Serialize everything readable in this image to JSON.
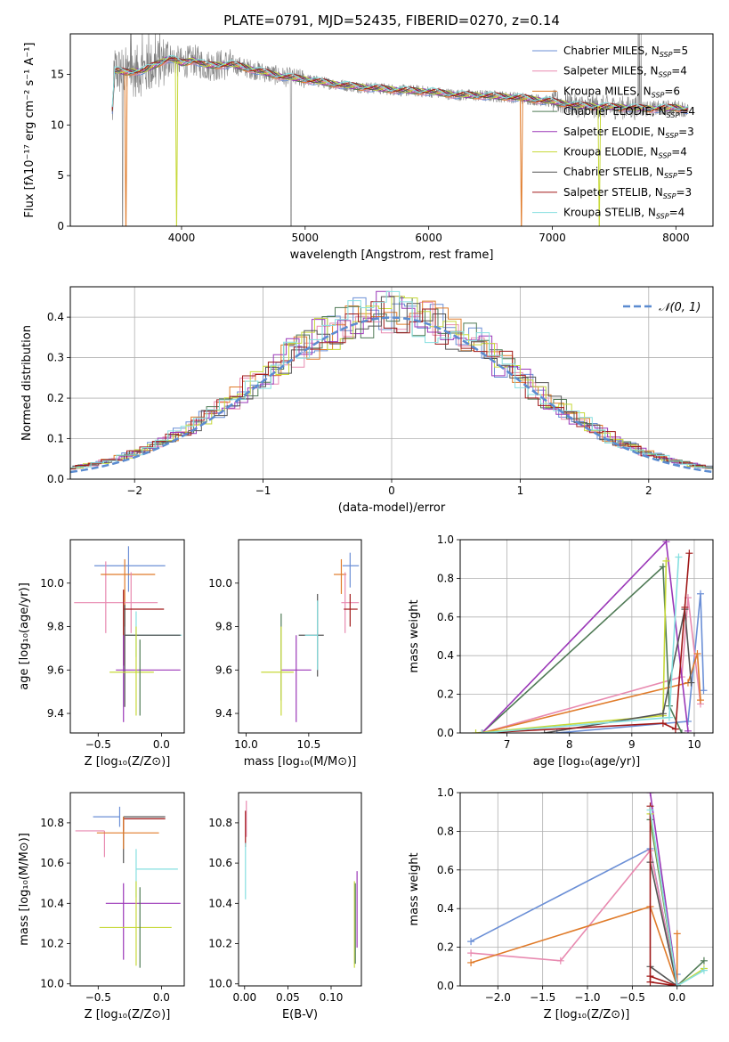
{
  "figure": {
    "title": "PLATE=0791, MJD=52435, FIBERID=0270, z=0.14"
  },
  "models": [
    {
      "name": "Chabrier MILES",
      "nssp": "5",
      "color": "#6b8fd6"
    },
    {
      "name": "Salpeter MILES",
      "nssp": "4",
      "color": "#e88ab0"
    },
    {
      "name": "Kroupa MILES",
      "nssp": "6",
      "color": "#e07b2a"
    },
    {
      "name": "Chabrier ELODIE",
      "nssp": "4",
      "color": "#4f7a55"
    },
    {
      "name": "Salpeter ELODIE",
      "nssp": "3",
      "color": "#9b38b8"
    },
    {
      "name": "Kroupa ELODIE",
      "nssp": "4",
      "color": "#c7d93a"
    },
    {
      "name": "Chabrier STELIB",
      "nssp": "5",
      "color": "#555555"
    },
    {
      "name": "Salpeter STELIB",
      "nssp": "3",
      "color": "#a01818"
    },
    {
      "name": "Kroupa STELIB",
      "nssp": "4",
      "color": "#86dfe0"
    }
  ],
  "chart_data": [
    {
      "id": "spectrum",
      "type": "line",
      "xlabel": "wavelength [Angstrom, rest frame]",
      "ylabel": "Flux [fλ10⁻¹⁷ erg cm⁻² s⁻¹ A⁻¹]",
      "xlim": [
        3100,
        8300
      ],
      "ylim": [
        0,
        19
      ],
      "xticks": [
        4000,
        5000,
        6000,
        7000,
        8000
      ],
      "yticks": [
        0,
        5,
        10,
        15
      ],
      "grid": false,
      "legend": "top-right",
      "observed_color": "#808080",
      "model_continuum": [
        [
          3450,
          15.4
        ],
        [
          3550,
          15.2
        ],
        [
          3700,
          15.4
        ],
        [
          3800,
          16.0
        ],
        [
          3900,
          16.6
        ],
        [
          4000,
          16.1
        ],
        [
          4100,
          16.4
        ],
        [
          4200,
          15.9
        ],
        [
          4300,
          15.9
        ],
        [
          4400,
          16.0
        ],
        [
          4600,
          15.4
        ],
        [
          4800,
          14.8
        ],
        [
          5000,
          14.5
        ],
        [
          5200,
          14.1
        ],
        [
          5400,
          13.8
        ],
        [
          5600,
          13.6
        ],
        [
          5800,
          13.4
        ],
        [
          6000,
          13.3
        ],
        [
          6200,
          13.0
        ],
        [
          6400,
          12.9
        ],
        [
          6600,
          12.8
        ],
        [
          6800,
          12.6
        ],
        [
          7000,
          12.3
        ],
        [
          7200,
          11.9
        ],
        [
          7400,
          11.8
        ],
        [
          7600,
          11.7
        ],
        [
          7800,
          11.6
        ],
        [
          8000,
          11.7
        ],
        [
          8100,
          11.5
        ]
      ],
      "dropouts": [
        [
          3550,
          3540,
          3560
        ],
        [
          3960,
          3950,
          3970
        ],
        [
          6750,
          6740,
          6760
        ],
        [
          7380,
          7370,
          7390
        ]
      ]
    },
    {
      "id": "residuals",
      "type": "histogram",
      "xlabel": "(data-model)/error",
      "ylabel": "Normed distribution",
      "xlim": [
        -2.5,
        2.5
      ],
      "ylim": [
        0,
        0.475
      ],
      "xticks": [
        -2,
        -1,
        0,
        1,
        2
      ],
      "xticklabels": [
        "−2",
        "−1",
        "0",
        "1",
        "2"
      ],
      "yticks": [
        0.0,
        0.1,
        0.2,
        0.3,
        0.4
      ],
      "grid": true,
      "legend": "top-right",
      "reference_label": "𝒩(0, 1)",
      "bin_edges_step": 0.1
    },
    {
      "id": "age_vs_Z",
      "type": "errorbar",
      "xlabel": "Z [log₁₀(Z/Z⊙)]",
      "ylabel": "age  [log₁₀(age/yr)]",
      "xlim": [
        -0.72,
        0.18
      ],
      "ylim": [
        9.31,
        10.2
      ],
      "xticks": [
        -0.5,
        0.0
      ],
      "xticklabels": [
        "−0.5",
        "0.0"
      ],
      "yticks": [
        9.4,
        9.6,
        9.8,
        10.0
      ],
      "points": [
        {
          "model": 0,
          "x": -0.26,
          "y": 10.08,
          "xerr": [
            0.27,
            0.29
          ],
          "yerr": [
            0.12,
            0.09
          ]
        },
        {
          "model": 1,
          "x": -0.44,
          "y": 10.06,
          "xerr": [
            0.0,
            0.0
          ],
          "yerr": [
            0.29,
            0.04
          ]
        },
        {
          "model": 2,
          "x": -0.29,
          "y": 10.04,
          "xerr": [
            0.19,
            0.24
          ],
          "yerr": [
            0.24,
            0.07
          ]
        },
        {
          "model": 1,
          "x": -0.24,
          "y": 9.91,
          "xerr": [
            0.45,
            0.21
          ],
          "yerr": [
            0.14,
            0.14
          ]
        },
        {
          "model": 7,
          "x": -0.3,
          "y": 9.88,
          "xerr": [
            0.0,
            0.32
          ],
          "yerr": [
            0.26,
            0.09
          ]
        },
        {
          "model": 8,
          "x": -0.2,
          "y": 9.76,
          "xerr": [
            0.09,
            0.36
          ],
          "yerr": [
            0.1,
            0.11
          ]
        },
        {
          "model": 6,
          "x": -0.29,
          "y": 9.76,
          "xerr": [
            0.0,
            0.44
          ],
          "yerr": [
            0.33,
            0.14
          ]
        },
        {
          "model": 4,
          "x": -0.3,
          "y": 9.6,
          "xerr": [
            0.06,
            0.45
          ],
          "yerr": [
            0.24,
            0.16
          ]
        },
        {
          "model": 5,
          "x": -0.2,
          "y": 9.59,
          "xerr": [
            0.21,
            0.14
          ],
          "yerr": [
            0.2,
            0.21
          ]
        },
        {
          "model": 3,
          "x": -0.17,
          "y": 9.59,
          "xerr": [
            0.0,
            0.0
          ],
          "yerr": [
            0.2,
            0.15
          ]
        }
      ]
    },
    {
      "id": "age_vs_mass",
      "type": "errorbar",
      "xlabel": "mass [log₁₀(M/M⊙)]",
      "ylabel": "",
      "xlim": [
        9.94,
        10.92
      ],
      "ylim": [
        9.31,
        10.2
      ],
      "xticks": [
        10.0,
        10.5
      ],
      "xticklabels": [
        "10.0",
        "10.5"
      ],
      "yticks": [
        9.4,
        9.6,
        9.8,
        10.0
      ],
      "points": [
        {
          "model": 0,
          "x": 10.83,
          "y": 10.08,
          "xerr": [
            0.06,
            0.07
          ],
          "yerr": [
            0.1,
            0.06
          ]
        },
        {
          "model": 2,
          "x": 10.76,
          "y": 10.04,
          "xerr": [
            0.06,
            0.04
          ],
          "yerr": [
            0.09,
            0.07
          ]
        },
        {
          "model": 1,
          "x": 10.79,
          "y": 9.91,
          "xerr": [
            0.03,
            0.11
          ],
          "yerr": [
            0.14,
            0.14
          ]
        },
        {
          "model": 7,
          "x": 10.83,
          "y": 9.88,
          "xerr": [
            0.05,
            0.06
          ],
          "yerr": [
            0.08,
            0.07
          ]
        },
        {
          "model": 6,
          "x": 10.57,
          "y": 9.76,
          "xerr": [
            0.15,
            0.05
          ],
          "yerr": [
            0.19,
            0.19
          ]
        },
        {
          "model": 8,
          "x": 10.57,
          "y": 9.76,
          "xerr": [
            0.1,
            0.0
          ],
          "yerr": [
            0.16,
            0.16
          ]
        },
        {
          "model": 3,
          "x": 10.28,
          "y": 9.6,
          "xerr": [
            0.0,
            0.0
          ],
          "yerr": [
            0.14,
            0.26
          ]
        },
        {
          "model": 4,
          "x": 10.4,
          "y": 9.6,
          "xerr": [
            0.12,
            0.12
          ],
          "yerr": [
            0.24,
            0.16
          ]
        },
        {
          "model": 5,
          "x": 10.28,
          "y": 9.59,
          "xerr": [
            0.16,
            0.1
          ],
          "yerr": [
            0.2,
            0.21
          ]
        }
      ]
    },
    {
      "id": "weight_vs_age",
      "type": "line",
      "xlabel": "age  [log₁₀(age/yr)]",
      "ylabel": "mass weight",
      "xlim": [
        6.25,
        10.3
      ],
      "ylim": [
        0,
        1
      ],
      "xticks": [
        7,
        8,
        9,
        10
      ],
      "yticks": [
        0.0,
        0.2,
        0.4,
        0.6,
        0.8,
        1.0
      ],
      "grid": true,
      "series": [
        {
          "model": 0,
          "points": [
            [
              7.8,
              0.0
            ],
            [
              9.9,
              0.06
            ],
            [
              10.1,
              0.72
            ],
            [
              10.15,
              0.22
            ]
          ]
        },
        {
          "model": 1,
          "points": [
            [
              6.6,
              0.0
            ],
            [
              9.8,
              0.29
            ],
            [
              9.9,
              0.7
            ],
            [
              10.1,
              0.15
            ]
          ]
        },
        {
          "model": 2,
          "points": [
            [
              6.6,
              0.0
            ],
            [
              9.9,
              0.26
            ],
            [
              10.05,
              0.41
            ],
            [
              10.1,
              0.17
            ]
          ]
        },
        {
          "model": 3,
          "points": [
            [
              6.6,
              0.0
            ],
            [
              9.5,
              0.86
            ],
            [
              9.6,
              0.14
            ],
            [
              9.8,
              0.0
            ]
          ]
        },
        {
          "model": 4,
          "points": [
            [
              6.6,
              0.0
            ],
            [
              9.55,
              0.99
            ],
            [
              9.9,
              0.01
            ]
          ]
        },
        {
          "model": 5,
          "points": [
            [
              6.5,
              0.0
            ],
            [
              9.5,
              0.09
            ],
            [
              9.55,
              0.89
            ]
          ]
        },
        {
          "model": 6,
          "points": [
            [
              7.6,
              0.0
            ],
            [
              9.5,
              0.1
            ],
            [
              9.85,
              0.64
            ],
            [
              9.95,
              0.26
            ]
          ]
        },
        {
          "model": 7,
          "points": [
            [
              6.6,
              0.0
            ],
            [
              9.5,
              0.05
            ],
            [
              9.7,
              0.02
            ],
            [
              9.85,
              0.65
            ],
            [
              9.92,
              0.93
            ]
          ]
        },
        {
          "model": 8,
          "points": [
            [
              6.6,
              0.0
            ],
            [
              9.6,
              0.08
            ],
            [
              9.75,
              0.91
            ]
          ]
        }
      ]
    },
    {
      "id": "mass_vs_Z",
      "type": "errorbar",
      "xlabel": "Z [log₁₀(Z/Z⊙)]",
      "ylabel": "mass [log₁₀(M/M⊙)]",
      "xlim": [
        -0.72,
        0.18
      ],
      "ylim": [
        9.99,
        10.95
      ],
      "xticks": [
        -0.5,
        0.0
      ],
      "xticklabels": [
        "−0.5",
        "0.0"
      ],
      "yticks": [
        10.0,
        10.2,
        10.4,
        10.6,
        10.8
      ],
      "points": [
        {
          "model": 0,
          "x": -0.33,
          "y": 10.83,
          "xerr": [
            0.21,
            0.0
          ],
          "yerr": [
            0.05,
            0.05
          ]
        },
        {
          "model": 6,
          "x": -0.3,
          "y": 10.83,
          "xerr": [
            0.0,
            0.33
          ],
          "yerr": [
            0.23,
            0.0
          ]
        },
        {
          "model": 7,
          "x": -0.3,
          "y": 10.82,
          "xerr": [
            0.0,
            0.33
          ],
          "yerr": [
            0.06,
            0.0
          ]
        },
        {
          "model": 1,
          "x": -0.45,
          "y": 10.76,
          "xerr": [
            0.23,
            0.0
          ],
          "yerr": [
            0.13,
            0.0
          ]
        },
        {
          "model": 2,
          "x": -0.3,
          "y": 10.75,
          "xerr": [
            0.21,
            0.28
          ],
          "yerr": [
            0.08,
            0.08
          ]
        },
        {
          "model": 8,
          "x": -0.2,
          "y": 10.57,
          "xerr": [
            0.0,
            0.33
          ],
          "yerr": [
            0.14,
            0.1
          ]
        },
        {
          "model": 4,
          "x": -0.3,
          "y": 10.4,
          "xerr": [
            0.14,
            0.45
          ],
          "yerr": [
            0.28,
            0.1
          ]
        },
        {
          "model": 5,
          "x": -0.2,
          "y": 10.28,
          "xerr": [
            0.29,
            0.28
          ],
          "yerr": [
            0.19,
            0.23
          ]
        },
        {
          "model": 3,
          "x": -0.17,
          "y": 10.28,
          "xerr": [
            0.0,
            0.0
          ],
          "yerr": [
            0.2,
            0.2
          ]
        }
      ]
    },
    {
      "id": "mass_vs_ebv",
      "type": "errorbar",
      "xlabel": "E(B-V)",
      "ylabel": "",
      "xlim": [
        -0.007,
        0.135
      ],
      "ylim": [
        9.99,
        10.95
      ],
      "xticks": [
        0.0,
        0.05,
        0.1
      ],
      "xticklabels": [
        "0.00",
        "0.05",
        "0.10"
      ],
      "yticks": [
        10.0,
        10.2,
        10.4,
        10.6,
        10.8
      ],
      "points": [
        {
          "model": 1,
          "x": 0.002,
          "y": 10.83,
          "xerr": [
            0.0,
            0.0
          ],
          "yerr": [
            0.1,
            0.08
          ]
        },
        {
          "model": 7,
          "x": 0.001,
          "y": 10.78,
          "xerr": [
            0.0,
            0.0
          ],
          "yerr": [
            0.1,
            0.08
          ]
        },
        {
          "model": 8,
          "x": 0.001,
          "y": 10.62,
          "xerr": [
            0.0,
            0.0
          ],
          "yerr": [
            0.2,
            0.08
          ]
        },
        {
          "model": 4,
          "x": 0.13,
          "y": 10.4,
          "xerr": [
            0.0,
            0.0
          ],
          "yerr": [
            0.22,
            0.16
          ]
        },
        {
          "model": 5,
          "x": 0.127,
          "y": 10.28,
          "xerr": [
            0.0,
            0.0
          ],
          "yerr": [
            0.2,
            0.23
          ]
        },
        {
          "model": 3,
          "x": 0.128,
          "y": 10.3,
          "xerr": [
            0.0,
            0.0
          ],
          "yerr": [
            0.2,
            0.2
          ]
        }
      ]
    },
    {
      "id": "weight_vs_Z",
      "type": "line",
      "xlabel": "Z [log₁₀(Z/Z⊙)]",
      "ylabel": "mass weight",
      "xlim": [
        -2.42,
        0.4
      ],
      "ylim": [
        0,
        1
      ],
      "xticks": [
        -2.0,
        -1.5,
        -1.0,
        -0.5,
        0.0
      ],
      "xticklabels": [
        "−2.0",
        "−1.5",
        "−1.0",
        "−0.5",
        "0.0"
      ],
      "yticks": [
        0.0,
        0.2,
        0.4,
        0.6,
        0.8,
        1.0
      ],
      "grid": true,
      "series": [
        {
          "model": 0,
          "points": [
            [
              -2.3,
              0.23
            ],
            [
              -0.3,
              0.71
            ],
            [
              0.0,
              0.0
            ],
            [
              0.0,
              0.06
            ]
          ]
        },
        {
          "model": 1,
          "points": [
            [
              -2.3,
              0.17
            ],
            [
              -1.3,
              0.13
            ],
            [
              -0.3,
              0.7
            ],
            [
              0.0,
              0.0
            ]
          ]
        },
        {
          "model": 2,
          "points": [
            [
              -2.3,
              0.12
            ],
            [
              -0.3,
              0.41
            ],
            [
              0.0,
              0.0
            ],
            [
              0.0,
              0.27
            ]
          ]
        },
        {
          "model": 3,
          "points": [
            [
              -0.3,
              0.86
            ],
            [
              0.0,
              0.0
            ],
            [
              0.3,
              0.13
            ]
          ]
        },
        {
          "model": 4,
          "points": [
            [
              -0.3,
              1.0
            ],
            [
              0.0,
              0.01
            ]
          ]
        },
        {
          "model": 5,
          "points": [
            [
              -0.3,
              0.89
            ],
            [
              0.0,
              0.0
            ],
            [
              0.3,
              0.09
            ]
          ]
        },
        {
          "model": 6,
          "points": [
            [
              -0.3,
              0.1
            ],
            [
              0.0,
              0.0
            ],
            [
              -0.3,
              0.64
            ]
          ]
        },
        {
          "model": 7,
          "points": [
            [
              -0.3,
              0.05
            ],
            [
              0.0,
              0.0
            ],
            [
              -0.3,
              0.02
            ],
            [
              -0.3,
              0.93
            ]
          ]
        },
        {
          "model": 8,
          "points": [
            [
              -0.3,
              0.91
            ],
            [
              0.0,
              0.0
            ],
            [
              0.3,
              0.08
            ]
          ]
        }
      ]
    }
  ]
}
